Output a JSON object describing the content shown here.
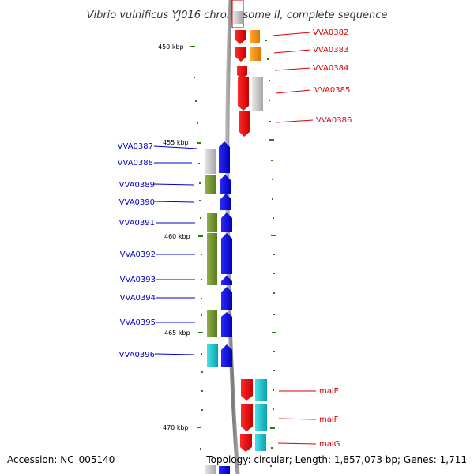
{
  "title": "Vibrio vulnificus YJ016 chromosome II, complete sequence",
  "accession": "Accession: NC_005140",
  "topology": "Topology: circular; Length: 1,857,073 bp; Genes: 1,711",
  "colors": {
    "backbone": "#8c8c8c",
    "tick": "#2b7a0b",
    "forward_label": "#dd0000",
    "reverse_label": "#0000cc"
  },
  "kbp_marks": [
    "450 kbp",
    "455 kbp",
    "460 kbp",
    "465 kbp",
    "470 kbp"
  ],
  "forward_genes": [
    "VVA0382",
    "VVA0383",
    "VVA0384",
    "VVA0385",
    "VVA0386",
    "malE",
    "malF",
    "malG"
  ],
  "reverse_genes": [
    "VVA0387",
    "VVA0388",
    "VVA0389",
    "VVA0390",
    "VVA0391",
    "VVA0392",
    "VVA0393",
    "VVA0394",
    "VVA0395",
    "VVA0396"
  ]
}
